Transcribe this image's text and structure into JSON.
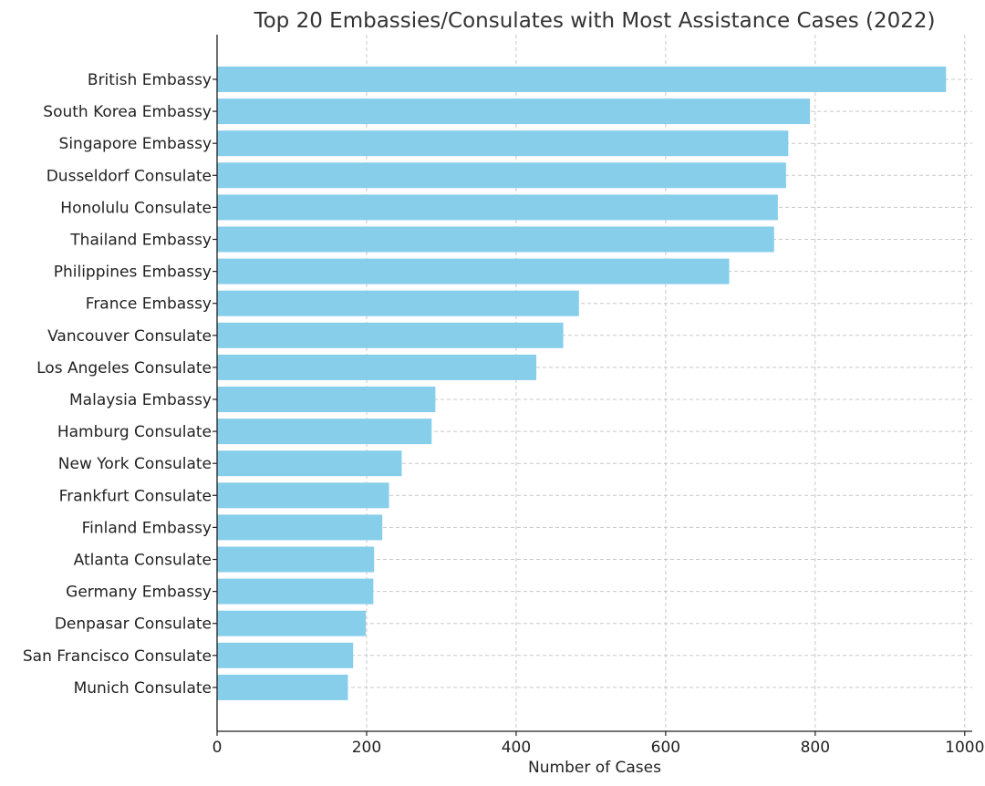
{
  "chart_data": {
    "type": "bar",
    "orientation": "horizontal",
    "title": "Top 20 Embassies/Consulates with Most Assistance Cases (2022)",
    "xlabel": "Number of Cases",
    "ylabel": "",
    "xlim": [
      0,
      1010
    ],
    "xticks": [
      0,
      200,
      400,
      600,
      800,
      1000
    ],
    "grid": true,
    "color": "#87CEEB",
    "categories": [
      "British Embassy",
      "South Korea Embassy",
      "Singapore Embassy",
      "Dusseldorf Consulate",
      "Honolulu Consulate",
      "Thailand Embassy",
      "Philippines Embassy",
      "France Embassy",
      "Vancouver Consulate",
      "Los Angeles Consulate",
      "Malaysia Embassy",
      "Hamburg Consulate",
      "New York Consulate",
      "Frankfurt Consulate",
      "Finland Embassy",
      "Atlanta Consulate",
      "Germany Embassy",
      "Denpasar Consulate",
      "San Francisco Consulate",
      "Munich Consulate"
    ],
    "values": [
      975,
      793,
      764,
      761,
      750,
      745,
      685,
      484,
      463,
      427,
      292,
      287,
      247,
      230,
      221,
      210,
      209,
      199,
      182,
      175
    ]
  }
}
